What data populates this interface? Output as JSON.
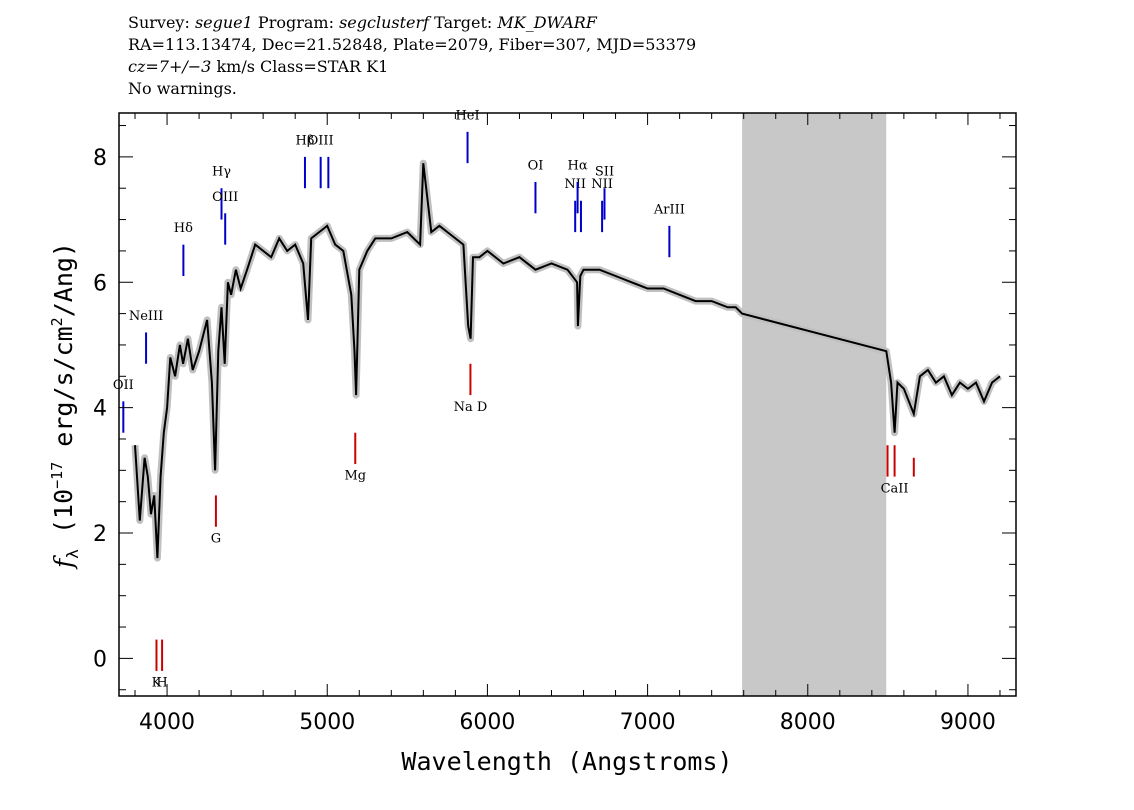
{
  "header": {
    "survey_label": "Survey:",
    "survey": "segue1",
    "program_label": "Program:",
    "program": "segclusterf",
    "target_label": "Target:",
    "target": "MK_DWARF",
    "line2": "RA=113.13474, Dec=21.52848, Plate=2079, Fiber=307, MJD=53379",
    "cz_label": "cz=7+/−3",
    "cz_rest": " km/s Class=STAR K1",
    "warnings": "No warnings."
  },
  "chart_data": {
    "type": "line",
    "xlabel": "Wavelength (Angstroms)",
    "ylabel_main": "f",
    "ylabel_sub": "λ",
    "ylabel_rest": " (10",
    "ylabel_exp": "−17",
    "ylabel_tail": " erg/s/cm",
    "ylabel_exp2": "2",
    "ylabel_end": "/Ang)",
    "xlim": [
      3700,
      9300
    ],
    "ylim": [
      -0.6,
      8.7
    ],
    "xticks": [
      4000,
      5000,
      6000,
      7000,
      8000,
      9000
    ],
    "yticks": [
      0,
      2,
      4,
      6,
      8
    ],
    "masked_region": [
      7590,
      8490
    ],
    "colors": {
      "spectrum": "#000000",
      "noise": "#c0c0c0",
      "emission": "#0000cc",
      "absorption": "#cc0000",
      "mask": "#c8c8c8"
    },
    "series": [
      {
        "x": [
          3800,
          3830,
          3860,
          3880,
          3900,
          3920,
          3940,
          3960,
          3980,
          4000,
          4020,
          4050,
          4080,
          4100,
          4130,
          4160,
          4200,
          4250,
          4280,
          4300,
          4320,
          4340,
          4360,
          4380,
          4400,
          4430,
          4460,
          4500,
          4550,
          4600,
          4650,
          4700,
          4750,
          4800,
          4850,
          4880,
          4900,
          4950,
          5000,
          5050,
          5100,
          5150,
          5170,
          5180,
          5200,
          5250,
          5300,
          5400,
          5500,
          5580,
          5600,
          5650,
          5700,
          5750,
          5800,
          5850,
          5880,
          5895,
          5910,
          5950,
          6000,
          6100,
          6200,
          6300,
          6400,
          6500,
          6560,
          6565,
          6580,
          6600,
          6700,
          6800,
          6900,
          7000,
          7100,
          7200,
          7300,
          7400,
          7500,
          7550,
          7590,
          8490,
          8520,
          8542,
          8560,
          8600,
          8662,
          8700,
          8750,
          8800,
          8850,
          8900,
          8950,
          9000,
          9050,
          9100,
          9150,
          9200
        ],
        "values": [
          3.4,
          2.2,
          3.2,
          2.9,
          2.3,
          2.6,
          1.6,
          2.9,
          3.6,
          4.0,
          4.8,
          4.5,
          5.0,
          4.7,
          5.1,
          4.6,
          4.9,
          5.4,
          4.4,
          3.0,
          4.9,
          5.6,
          4.7,
          6.0,
          5.8,
          6.2,
          5.9,
          6.2,
          6.6,
          6.5,
          6.4,
          6.7,
          6.5,
          6.6,
          6.3,
          5.4,
          6.7,
          6.8,
          6.9,
          6.6,
          6.5,
          5.8,
          4.9,
          4.2,
          6.2,
          6.5,
          6.7,
          6.7,
          6.8,
          6.6,
          7.9,
          6.8,
          6.9,
          6.8,
          6.7,
          6.6,
          5.3,
          5.1,
          6.4,
          6.4,
          6.5,
          6.3,
          6.4,
          6.2,
          6.3,
          6.2,
          6.0,
          5.3,
          6.1,
          6.2,
          6.2,
          6.1,
          6.0,
          5.9,
          5.9,
          5.8,
          5.7,
          5.7,
          5.6,
          5.6,
          5.5,
          4.9,
          4.4,
          3.6,
          4.4,
          4.3,
          3.9,
          4.5,
          4.6,
          4.4,
          4.5,
          4.2,
          4.4,
          4.3,
          4.4,
          4.1,
          4.4,
          4.5
        ]
      }
    ],
    "emission_lines": [
      {
        "label": "OII",
        "x": 3727,
        "y1": 3.6,
        "y2": 4.1,
        "ly": 4.3
      },
      {
        "label": "NeIII",
        "x": 3869,
        "y1": 4.7,
        "y2": 5.2,
        "ly": 5.4
      },
      {
        "label": "Hδ",
        "x": 4102,
        "y1": 6.1,
        "y2": 6.6,
        "ly": 6.8
      },
      {
        "label": "Hγ",
        "x": 4340,
        "y1": 7.0,
        "y2": 7.5,
        "ly": 7.7
      },
      {
        "label": "OIII",
        "x": 4363,
        "y1": 6.6,
        "y2": 7.1,
        "ly": 7.3
      },
      {
        "label": "Hβ",
        "x": 4861,
        "y1": 7.5,
        "y2": 8.0,
        "ly": 8.2
      },
      {
        "label": "OIII",
        "x": 4959,
        "y1": 7.5,
        "y2": 8.0,
        "ly": 8.2
      },
      {
        "label": "",
        "x": 5007,
        "y1": 7.5,
        "y2": 8.0,
        "ly": 8.2
      },
      {
        "label": "HeI",
        "x": 5876,
        "y1": 7.9,
        "y2": 8.4,
        "ly": 8.6
      },
      {
        "label": "OI",
        "x": 6300,
        "y1": 7.1,
        "y2": 7.6,
        "ly": 7.8
      },
      {
        "label": "NII",
        "x": 6548,
        "y1": 6.8,
        "y2": 7.3,
        "ly": 7.5
      },
      {
        "label": "Hα",
        "x": 6563,
        "y1": 7.1,
        "y2": 7.6,
        "ly": 7.8
      },
      {
        "label": "",
        "x": 6584,
        "y1": 6.8,
        "y2": 7.3,
        "ly": 7.5
      },
      {
        "label": "NII",
        "x": 6716,
        "y1": 6.8,
        "y2": 7.3,
        "ly": 7.5
      },
      {
        "label": "SII",
        "x": 6731,
        "y1": 7.0,
        "y2": 7.5,
        "ly": 7.7
      },
      {
        "label": "ArIII",
        "x": 7136,
        "y1": 6.4,
        "y2": 6.9,
        "ly": 7.1
      }
    ],
    "absorption_lines": [
      {
        "label": "K",
        "x": 3934,
        "y1": 0.3,
        "y2": -0.2,
        "ly": -0.45
      },
      {
        "label": "H",
        "x": 3969,
        "y1": 0.3,
        "y2": -0.2,
        "ly": -0.45
      },
      {
        "label": "G",
        "x": 4305,
        "y1": 2.6,
        "y2": 2.1,
        "ly": 1.85
      },
      {
        "label": "Mg",
        "x": 5175,
        "y1": 3.6,
        "y2": 3.1,
        "ly": 2.85
      },
      {
        "label": "Na D",
        "x": 5894,
        "y1": 4.7,
        "y2": 4.2,
        "ly": 3.95
      },
      {
        "label": "",
        "x": 8498,
        "y1": 3.4,
        "y2": 2.9,
        "ly": 2.65
      },
      {
        "label": "CaII",
        "x": 8542,
        "y1": 3.4,
        "y2": 2.9,
        "ly": 2.65
      },
      {
        "label": "",
        "x": 8662,
        "y1": 3.2,
        "y2": 2.9,
        "ly": 2.65
      }
    ]
  }
}
